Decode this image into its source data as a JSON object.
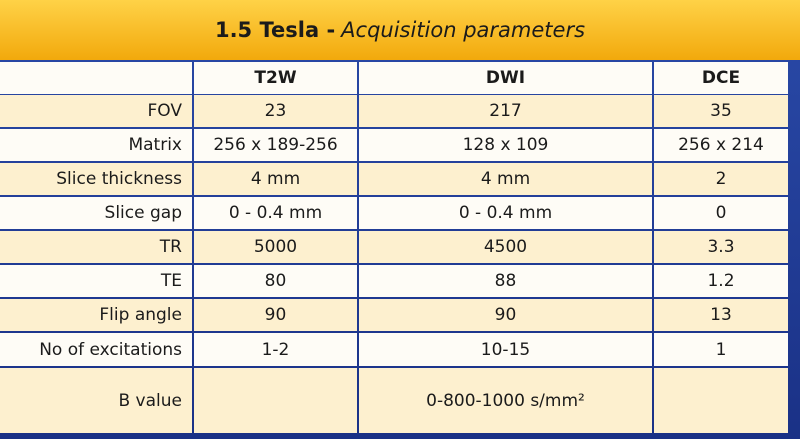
{
  "title": {
    "bold": "1.5 Tesla -",
    "italic": "Acquisition parameters"
  },
  "columns": [
    "T2W",
    "DWI",
    "DCE"
  ],
  "rows": [
    {
      "label": "FOV",
      "values": [
        "23",
        "217",
        "35"
      ]
    },
    {
      "label": "Matrix",
      "values": [
        "256 x 189-256",
        "128 x 109",
        "256 x 214"
      ]
    },
    {
      "label": "Slice thickness",
      "values": [
        "4 mm",
        "4 mm",
        "2"
      ]
    },
    {
      "label": "Slice gap",
      "values": [
        "0 - 0.4 mm",
        "0 - 0.4 mm",
        "0"
      ]
    },
    {
      "label": "TR",
      "values": [
        "5000",
        "4500",
        "3.3"
      ]
    },
    {
      "label": "TE",
      "values": [
        "80",
        "88",
        "1.2"
      ]
    },
    {
      "label": "Flip angle",
      "values": [
        "90",
        "90",
        "13"
      ]
    },
    {
      "label": "No of excitations",
      "values": [
        "1-2",
        "10-15",
        "1"
      ]
    },
    {
      "label": "B value",
      "values": [
        "",
        "0-800-1000 s/mm²",
        ""
      ]
    }
  ],
  "colors": {
    "title_gradient_top": "#ffd247",
    "title_gradient_bottom": "#f2a90c",
    "row_light": "#fefcf6",
    "row_cream": "#fdf0cf",
    "frame": "#1e3a93"
  }
}
